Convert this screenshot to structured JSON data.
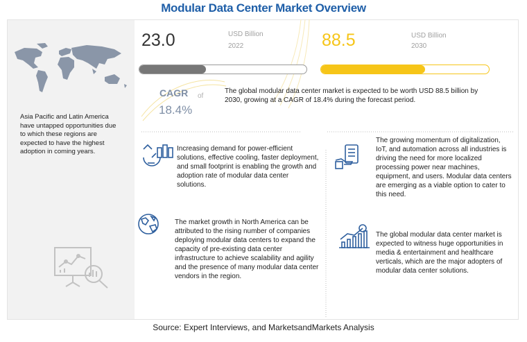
{
  "title": "Modular Data Center Market Overview",
  "left_panel": {
    "text": "Asia Pacific and Latin America have untapped opportunities due to which these regions are expected to have the highest adoption in coming years.",
    "icons": [
      "world-map-icon",
      "analytics-board-icon"
    ]
  },
  "metrics": {
    "start": {
      "value": "23.0",
      "unit": "USD Billion",
      "year": "2022",
      "bar_fill_fraction": 0.4
    },
    "end": {
      "value": "88.5",
      "unit": "USD Billion",
      "year": "2030",
      "bar_fill_fraction": 0.62
    },
    "cagr_label": "CAGR",
    "cagr_of": "of",
    "cagr_value": "18.4%",
    "summary": "The global modular data center market is expected to be worth USD 88.5 billion by 2030, growing at a CAGR of 18.4% during the forecast period."
  },
  "highlights": [
    {
      "icon": "efficiency-chart-icon",
      "text": "Increasing demand for power-efficient solutions, effective cooling, faster deployment, and small footprint is enabling the growth and adoption rate of modular data center solutions."
    },
    {
      "icon": "hand-device-icon",
      "text": "The growing momentum of digitalization, IoT, and automation across all industries is driving the need for more localized processing power near machines, equipment, and users. Modular data centers are emerging as a viable option to cater to this need."
    },
    {
      "icon": "globe-icon",
      "text": "The market growth in North America can be attributed to the rising number of companies deploying modular data centers to expand the capacity of pre-existing data center infrastructure to achieve scalability and agility and the presence of many modular data center vendors in the region."
    },
    {
      "icon": "growth-chart-dollar-icon",
      "text": "The global modular data center market is expected to witness huge opportunities in media & entertainment and healthcare verticals, which are the major adopters of modular data center solutions."
    }
  ],
  "colors": {
    "title": "#1f5fa8",
    "accent_yellow": "#f6c518",
    "bar_gray": "#777777",
    "panel_bg": "#f2f2f2"
  },
  "source": "Source: Expert Interviews, and MarketsandMarkets Analysis"
}
